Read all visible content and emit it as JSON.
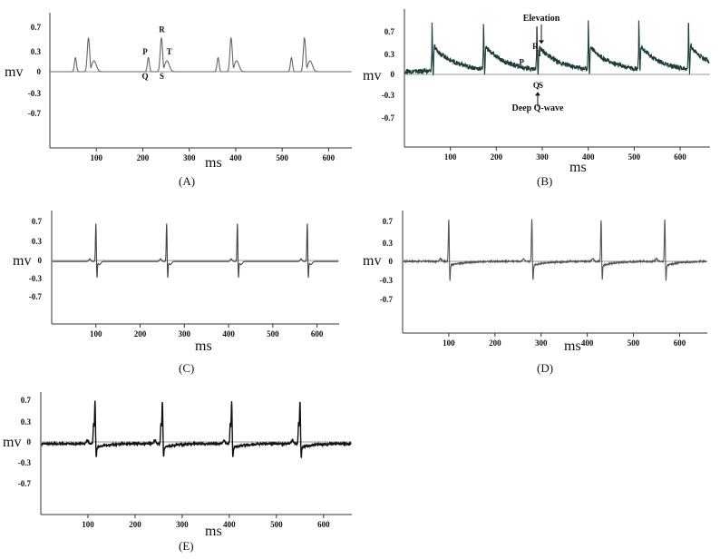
{
  "chart_data": [
    {
      "id": "A",
      "type": "line",
      "panel_label": "(A)",
      "xlabel": "ms",
      "ylabel": "mv",
      "xticks": [
        100,
        200,
        300,
        400,
        500,
        600
      ],
      "yticks": [
        "0.7",
        "0.3",
        "0",
        "-0.3",
        "-0.7"
      ],
      "xlim": [
        0,
        650
      ],
      "ylim": [
        -0.9,
        1.0
      ],
      "beats": [
        55,
        212,
        362,
        520
      ],
      "annotations": [
        {
          "text": "P",
          "x": 205,
          "y": 0.27
        },
        {
          "text": "R",
          "x": 241,
          "y": 0.62
        },
        {
          "text": "T",
          "x": 257,
          "y": 0.27
        },
        {
          "text": "Q",
          "x": 205,
          "y": -0.12
        },
        {
          "text": "S",
          "x": 241,
          "y": -0.12
        }
      ],
      "series": [
        {
          "color": "#666666",
          "offsets_ms": [
            0,
            28,
            35,
            40
          ],
          "values_mv": [
            0.2,
            0.5,
            0.02,
            0.15
          ],
          "mode": "ecg"
        }
      ]
    },
    {
      "id": "B",
      "type": "line",
      "panel_label": "(B)",
      "xlabel": "ms",
      "ylabel": "mv",
      "xticks": [
        100,
        200,
        300,
        400,
        500,
        600
      ],
      "yticks": [
        "0.7",
        "0.3",
        "0",
        "-0.3",
        "-0.7"
      ],
      "xlim": [
        0,
        665
      ],
      "ylim": [
        -1.0,
        1.0
      ],
      "beats": [
        60,
        172,
        288,
        400,
        510,
        618
      ],
      "annotations": [
        {
          "text": "Elevation",
          "x": 298,
          "y": 0.88
        },
        {
          "text": "R",
          "x": 285,
          "y": 0.42
        },
        {
          "text": "T",
          "x": 294,
          "y": 0.3
        },
        {
          "text": "P",
          "x": 255,
          "y": 0.16
        },
        {
          "text": "Q",
          "x": 287,
          "y": -0.22
        },
        {
          "text": "S",
          "x": 297,
          "y": -0.22
        },
        {
          "text": "Deep Q-wave",
          "x": 290,
          "y": -0.58
        }
      ],
      "series": [
        {
          "color": "#1b3d38",
          "mode": "noisy"
        }
      ]
    },
    {
      "id": "C",
      "type": "line",
      "panel_label": "(C)",
      "xlabel": "ms",
      "ylabel": "mv",
      "xticks": [
        100,
        200,
        300,
        400,
        500,
        600
      ],
      "yticks": [
        "0.7",
        "0.3",
        "0",
        "-0.3",
        "-0.7"
      ],
      "xlim": [
        0,
        650
      ],
      "ylim": [
        -1.0,
        1.0
      ],
      "beats": [
        100,
        260,
        420,
        578
      ],
      "annotations": [],
      "series": [
        {
          "color": "#444444",
          "mode": "spike"
        }
      ]
    },
    {
      "id": "D",
      "type": "line",
      "panel_label": "(D)",
      "xlabel": "ms",
      "ylabel": "mv",
      "xticks": [
        100,
        200,
        300,
        400,
        500,
        600
      ],
      "yticks": [
        "0.7",
        "0.3",
        "0",
        "-0.3",
        "-0.7"
      ],
      "xlim": [
        0,
        660
      ],
      "ylim": [
        -1.0,
        1.0
      ],
      "beats": [
        100,
        280,
        430,
        568
      ],
      "annotations": [],
      "series": [
        {
          "color": "#555555",
          "mode": "spike-d"
        }
      ]
    },
    {
      "id": "E",
      "type": "line",
      "panel_label": "(E)",
      "xlabel": "ms",
      "ylabel": "mv",
      "xticks": [
        100,
        200,
        300,
        400,
        500,
        600
      ],
      "yticks": [
        "0.7",
        "0.3",
        "0",
        "-0.3",
        "-0.7"
      ],
      "xlim": [
        0,
        660
      ],
      "ylim": [
        -1.0,
        1.0
      ],
      "beats": [
        115,
        258,
        405,
        550
      ],
      "annotations": [],
      "series": [
        {
          "color": "#111111",
          "mode": "spike-e"
        }
      ]
    }
  ]
}
